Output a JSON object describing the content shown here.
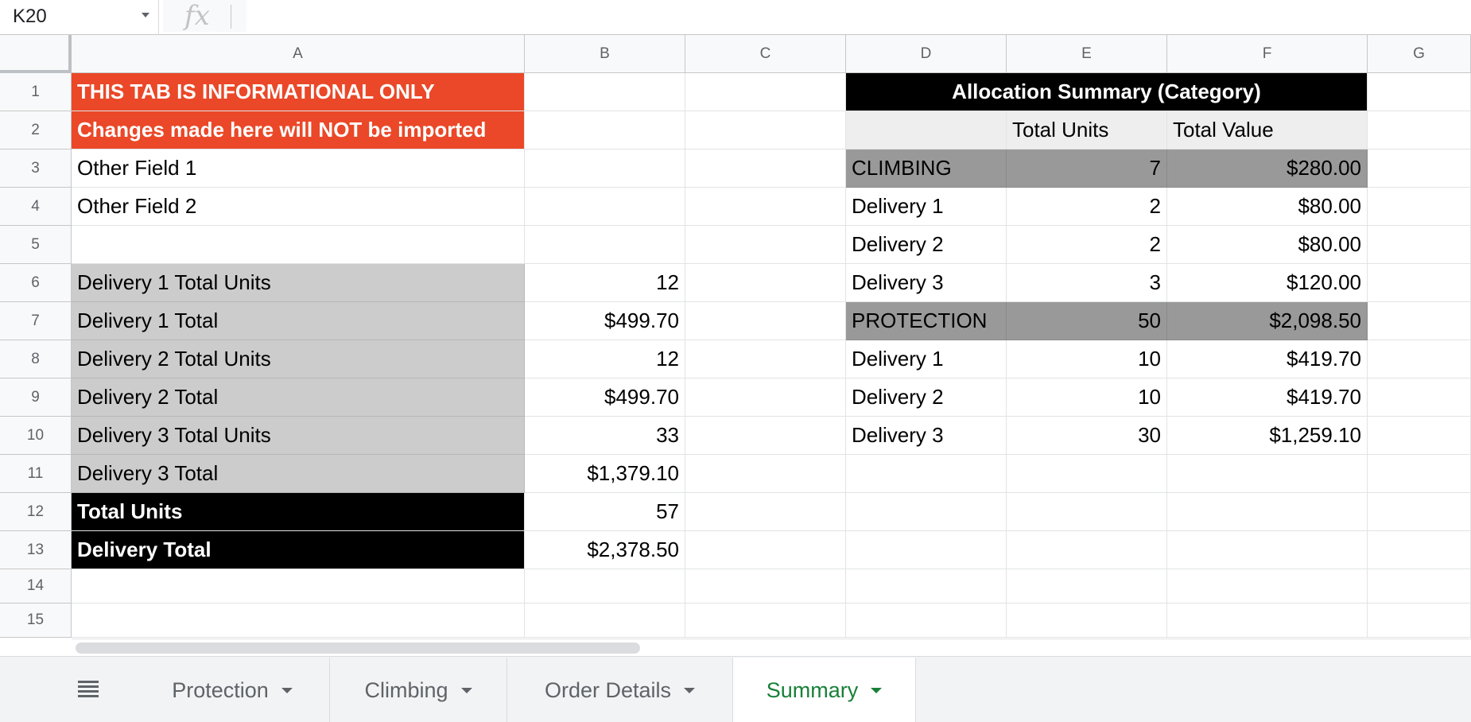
{
  "formula_bar": {
    "name_box": "K20",
    "fx_label": "fx"
  },
  "grid": {
    "columns": [
      "A",
      "B",
      "C",
      "D",
      "E",
      "F",
      "G"
    ],
    "rows": [
      "1",
      "2",
      "3",
      "4",
      "5",
      "6",
      "7",
      "8",
      "9",
      "10",
      "11",
      "12",
      "13",
      "14",
      "15"
    ],
    "cells": {
      "A1": "THIS TAB IS INFORMATIONAL ONLY",
      "A2": "Changes made here will NOT be imported",
      "A3": "Other Field 1",
      "A4": "Other Field 2",
      "A6": "Delivery 1 Total Units",
      "A7": "Delivery 1 Total",
      "A8": "Delivery 2 Total Units",
      "A9": "Delivery 2 Total",
      "A10": "Delivery 3 Total Units",
      "A11": "Delivery 3 Total",
      "A12": "Total Units",
      "A13": "Delivery Total",
      "B6": "12",
      "B7": "$499.70",
      "B8": "12",
      "B9": "$499.70",
      "B10": "33",
      "B11": "$1,379.10",
      "B12": "57",
      "B13": "$2,378.50",
      "D1": "Allocation Summary (Category)",
      "E2": "Total Units",
      "F2": "Total Value",
      "D3": "CLIMBING",
      "E3": "7",
      "F3": "$280.00",
      "D4": "Delivery 1",
      "E4": "2",
      "F4": "$80.00",
      "D5": "Delivery 2",
      "E5": "2",
      "F5": "$80.00",
      "D6": "Delivery 3",
      "E6": "3",
      "F6": "$120.00",
      "D7": "PROTECTION",
      "E7": "50",
      "F7": "$2,098.50",
      "D8": "Delivery 1",
      "E8": "10",
      "F8": "$419.70",
      "D9": "Delivery 2",
      "E9": "10",
      "F9": "$419.70",
      "D10": "Delivery 3",
      "E10": "30",
      "F10": "$1,259.10"
    },
    "colors": {
      "warning_bg": "#ea4828",
      "label_bg": "#cccccc",
      "total_bg": "#000000",
      "category_bg": "#999999",
      "header_bg": "#eeeeee",
      "gridline": "#e2e3e3"
    }
  },
  "tabs": {
    "all_sheets_icon": "hamburger-icon",
    "items": [
      {
        "label": "Protection",
        "active": false
      },
      {
        "label": "Climbing",
        "active": false
      },
      {
        "label": "Order Details",
        "active": false
      },
      {
        "label": "Summary",
        "active": true
      }
    ],
    "active_color": "#188038"
  }
}
